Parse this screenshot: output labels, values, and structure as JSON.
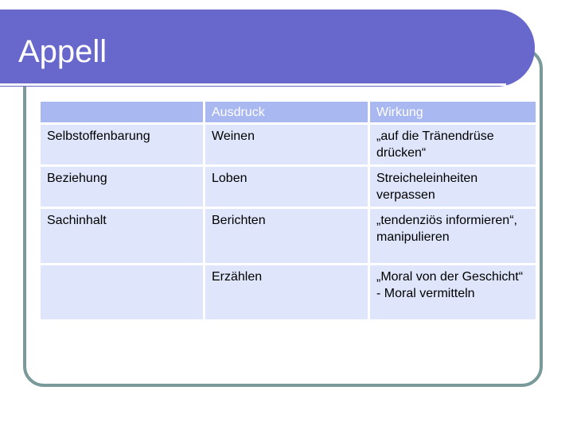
{
  "slide": {
    "title": "Appell"
  },
  "table": {
    "headers": [
      "",
      "Ausdruck",
      "Wirkung"
    ],
    "rows": [
      [
        "Selbstoffenbarung",
        "Weinen",
        "„auf die Tränendrüse drücken“"
      ],
      [
        "Beziehung",
        "Loben",
        "Streicheleinheiten verpassen"
      ],
      [
        "Sachinhalt",
        "Berichten",
        "„tendenziös informieren“, manipulieren"
      ],
      [
        "",
        "Erzählen",
        "„Moral von der Geschicht“ - Moral vermitteln"
      ]
    ]
  },
  "colors": {
    "title_banner": "#6868cc",
    "frame": "#7a9a9a",
    "header_cell": "#aab8f2",
    "body_cell": "#dfe6fb"
  }
}
